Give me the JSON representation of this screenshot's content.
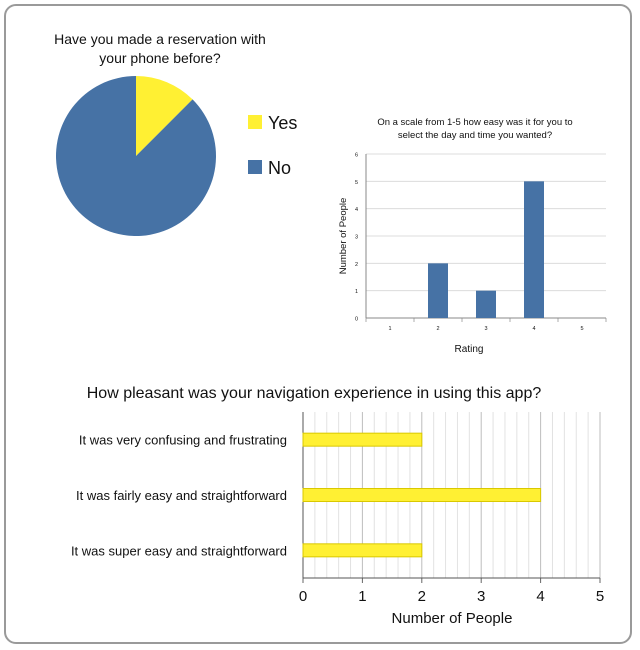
{
  "colors": {
    "yes": "#FFF033",
    "no": "#4672A5",
    "bar_fill": "#FFF033",
    "bar_border": "#D9C800",
    "column_fill": "#4672A5"
  },
  "chart_data": [
    {
      "type": "pie",
      "title": "Have you made a reservation with your phone before?",
      "title_lines": [
        "Have you made a reservation with",
        "your phone before?"
      ],
      "categories": [
        "Yes",
        "No"
      ],
      "values": [
        1,
        7
      ],
      "legend": [
        "Yes",
        "No"
      ],
      "legend_position": "right"
    },
    {
      "type": "bar",
      "title": "On a scale from 1-5 how easy was it for you to select the day and time you wanted?",
      "title_lines": [
        "On a scale from 1-5 how easy was it for you to",
        "select the day and time you wanted?"
      ],
      "categories": [
        "1",
        "2",
        "3",
        "4",
        "5"
      ],
      "values": [
        0,
        2,
        1,
        5,
        0
      ],
      "xlabel": "Rating",
      "ylabel": "Number of People",
      "ylim": [
        0,
        6
      ],
      "yticks": [
        "0",
        "1",
        "2",
        "3",
        "4",
        "5",
        "6"
      ],
      "grid": true
    },
    {
      "type": "bar",
      "orientation": "horizontal",
      "title": "How pleasant was your navigation experience in using this app?",
      "categories": [
        "It was very confusing and frustrating",
        "It was fairly easy and straightforward",
        "It was super easy and straightforward"
      ],
      "values": [
        2,
        4,
        2
      ],
      "xlabel": "Number of People",
      "xlim": [
        0,
        5
      ],
      "xticks": [
        "0",
        "1",
        "2",
        "3",
        "4",
        "5"
      ],
      "grid": true
    }
  ]
}
